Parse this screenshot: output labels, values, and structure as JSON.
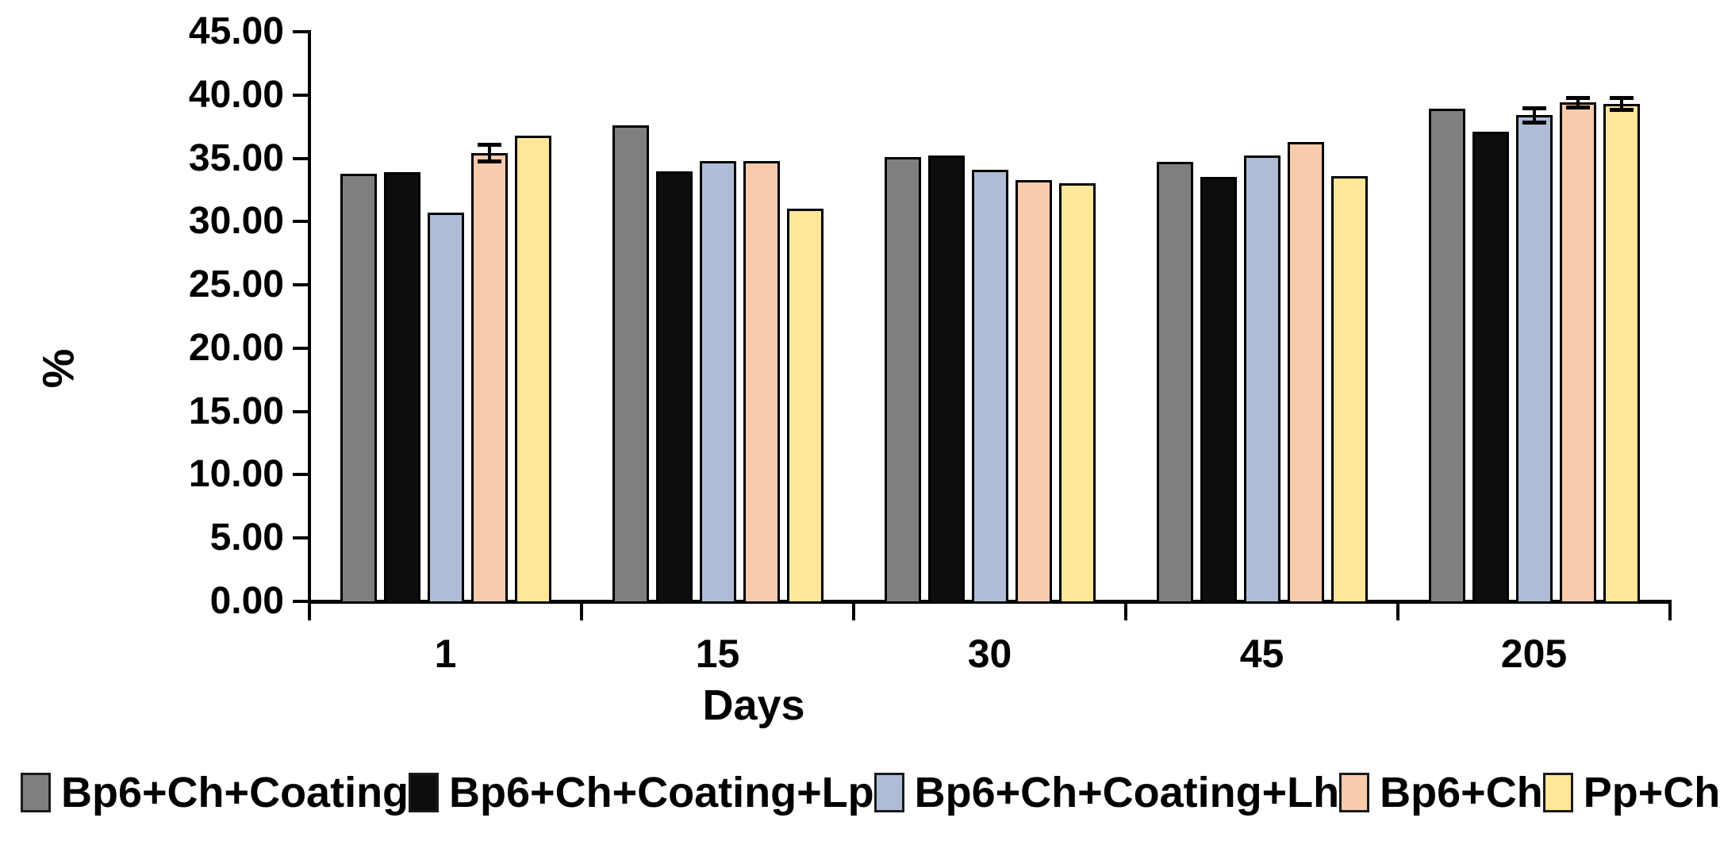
{
  "chart_data": {
    "type": "bar",
    "title": "",
    "xlabel": "Days",
    "ylabel": "%",
    "ylim": [
      0,
      45
    ],
    "ytick_step": 5,
    "ytick_labels": [
      "0.00",
      "5.00",
      "10.00",
      "15.00",
      "20.00",
      "25.00",
      "30.00",
      "35.00",
      "40.00",
      "45.00"
    ],
    "categories": [
      "1",
      "15",
      "30",
      "45",
      "205"
    ],
    "series": [
      {
        "name": "Bp6+Ch+Coating",
        "color": "#7f7f7f",
        "values": [
          33.8,
          37.6,
          35.1,
          34.7,
          38.9
        ],
        "errors": [
          0,
          0,
          0,
          0,
          0
        ]
      },
      {
        "name": "Bp6+Ch+Coating+Lp",
        "color": "#0d0d0d",
        "values": [
          33.9,
          34.0,
          35.2,
          33.5,
          37.1
        ],
        "errors": [
          0,
          0,
          0,
          0,
          0
        ]
      },
      {
        "name": "Bp6+Ch+Coating+Lh",
        "color": "#aebcd6",
        "values": [
          30.7,
          34.8,
          34.1,
          35.2,
          38.4
        ],
        "errors": [
          0,
          0,
          0,
          0,
          0.6
        ]
      },
      {
        "name": "Bp6+Ch",
        "color": "#f7cbac",
        "values": [
          35.4,
          34.8,
          33.3,
          36.3,
          39.4
        ],
        "errors": [
          0.7,
          0,
          0,
          0,
          0.4
        ]
      },
      {
        "name": "Pp+Ch",
        "color": "#ffe699",
        "values": [
          36.8,
          31.0,
          33.0,
          33.6,
          39.3
        ],
        "errors": [
          0,
          0,
          0,
          0,
          0.5
        ]
      }
    ],
    "legend_position": "bottom",
    "grid": false,
    "bar_outline_color": "#000000",
    "error_bar_color": "#000000"
  }
}
